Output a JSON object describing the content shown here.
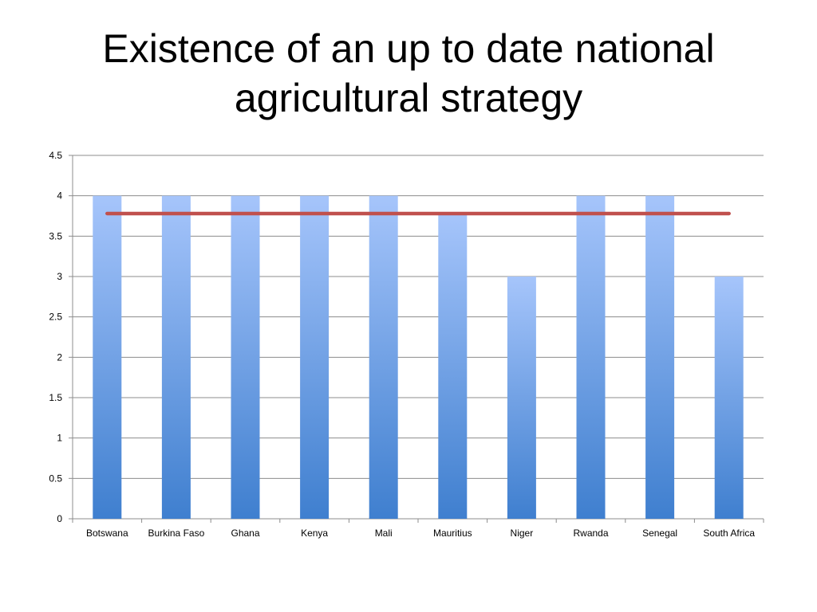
{
  "slide": {
    "title": "Existence of an up to date national agricultural strategy"
  },
  "chart_data": {
    "type": "bar",
    "title": "",
    "xlabel": "",
    "ylabel": "",
    "categories": [
      "Botswana",
      "Burkina Faso",
      "Ghana",
      "Kenya",
      "Mali",
      "Mauritius",
      "Niger",
      "Rwanda",
      "Senegal",
      "South Africa"
    ],
    "series": [
      {
        "values": [
          4,
          4,
          4,
          4,
          4,
          3.78,
          3,
          4,
          4,
          3
        ]
      },
      {
        "type": "line",
        "values": [
          3.78,
          3.78,
          3.78,
          3.78,
          3.78,
          3.78,
          3.78,
          3.78,
          3.78,
          3.78
        ]
      }
    ],
    "ylim": [
      0,
      4.5
    ],
    "yticks": [
      "0",
      "0.5",
      "1",
      "1.5",
      "2",
      "2.5",
      "3",
      "3.5",
      "4",
      "4.5"
    ],
    "grid": true,
    "legend": "none",
    "colors": {
      "bar_top": "#a6c5fb",
      "bar_bottom": "#3f7fcf",
      "line": "#c0504d",
      "grid": "#8c8c8c"
    }
  }
}
